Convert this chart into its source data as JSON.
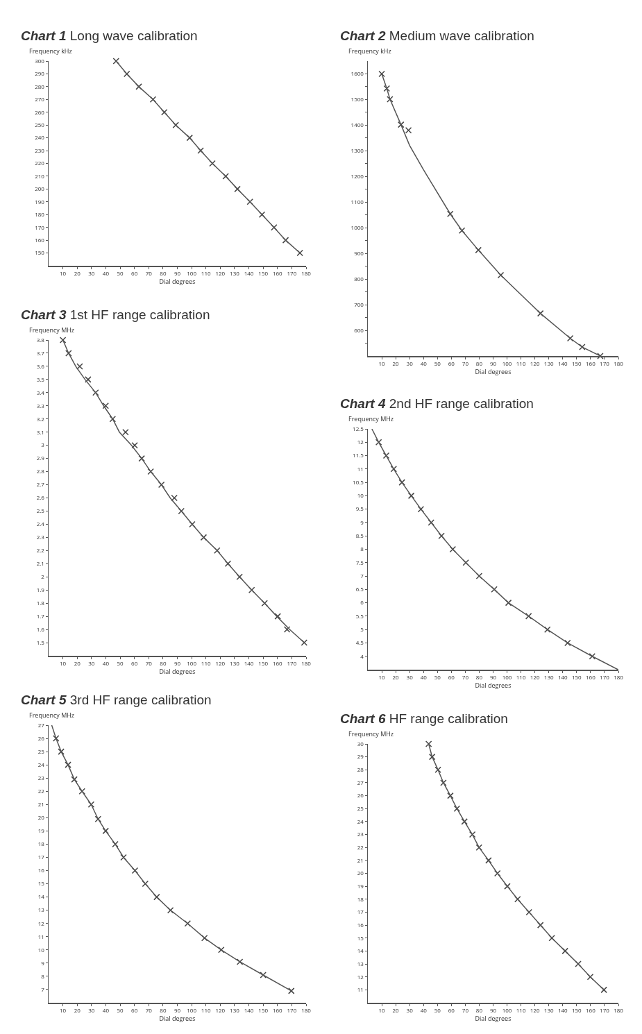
{
  "chart_data": [
    {
      "type": "line",
      "title": "Chart 1 Long wave calibration",
      "xlabel": "Dial degrees",
      "ylabel": "Frequency kHz",
      "xlim": [
        0,
        180
      ],
      "xticks": [
        10,
        20,
        30,
        40,
        50,
        60,
        70,
        80,
        90,
        100,
        110,
        120,
        130,
        140,
        150,
        160,
        170,
        180
      ],
      "ylim": [
        140,
        300
      ],
      "yticks": [
        150,
        160,
        170,
        180,
        190,
        200,
        210,
        220,
        230,
        240,
        250,
        260,
        270,
        280,
        290,
        300
      ],
      "grid": false,
      "series": [
        {
          "type": "scatter",
          "marker": "cross",
          "color": "#444444",
          "x": [
            47.2,
            54.7,
            63.1,
            73,
            80.9,
            88.9,
            98.6,
            106.3,
            114.5,
            123.8,
            132,
            140.8,
            149.2,
            157.6,
            165.7,
            175.7
          ],
          "values": [
            300,
            290,
            280,
            270,
            260,
            250,
            240,
            230,
            220,
            210,
            200,
            190,
            180,
            170,
            160,
            150
          ]
        },
        {
          "type": "line",
          "marker": "none",
          "line_style": "solid",
          "color": "#555555",
          "x": [
            47.2,
            54.7,
            63.1,
            73,
            80.9,
            88.9,
            98.6,
            106.3,
            114.5,
            123.8,
            132,
            140.8,
            149.2,
            157.6,
            165.7,
            175.7
          ],
          "values": [
            300,
            290,
            280,
            270,
            260,
            250,
            240,
            230,
            220,
            210,
            200,
            190,
            180,
            170,
            160,
            150
          ]
        }
      ]
    },
    {
      "type": "line",
      "title": "Chart 2 Medium wave calibration",
      "xlabel": "Dial degrees",
      "ylabel": "Frequency kHz",
      "xlim": [
        0,
        180
      ],
      "xticks": [
        10,
        20,
        30,
        40,
        50,
        60,
        70,
        80,
        90,
        100,
        110,
        120,
        130,
        140,
        150,
        160,
        170,
        180
      ],
      "ylim": [
        500,
        1650
      ],
      "yticks": [
        {
          "value": 550,
          "label": null
        },
        600,
        {
          "value": 650,
          "label": null
        },
        700,
        {
          "value": 750,
          "label": null
        },
        800,
        {
          "value": 850,
          "label": null
        },
        900,
        {
          "value": 950,
          "label": null
        },
        1000,
        {
          "value": 1050,
          "label": null
        },
        1100,
        {
          "value": 1150,
          "label": null
        },
        1200,
        {
          "value": 1250,
          "label": null
        },
        1300,
        {
          "value": 1350,
          "label": null
        },
        1400,
        {
          "value": 1450,
          "label": null
        },
        1500,
        {
          "value": 1550,
          "label": null
        },
        1600
      ],
      "grid": false,
      "series": [
        {
          "type": "scatter",
          "marker": "cross",
          "color": "#444444",
          "x": [
            10,
            13.6,
            15.9,
            23.8,
            29.2,
            59.2,
            67.6,
            79.4,
            95.5,
            124,
            145.4,
            154,
            167
          ],
          "values": [
            1600,
            1543,
            1501,
            1402,
            1380,
            1054,
            989,
            913,
            815,
            666,
            569,
            535,
            500
          ]
        },
        {
          "type": "line",
          "marker": "none",
          "line_style": "solid",
          "color": "#555555",
          "x": [
            10,
            13.6,
            15.9,
            23.8,
            30,
            40,
            59.2,
            67.6,
            79.4,
            95.5,
            124,
            145.4,
            154,
            167
          ],
          "values": [
            1600,
            1543,
            1501,
            1402,
            1321,
            1226,
            1054,
            989,
            913,
            815,
            666,
            569,
            535,
            500
          ]
        }
      ]
    },
    {
      "type": "line",
      "title": "Chart 3 1st HF range calibration",
      "xlabel": "Dial degrees",
      "ylabel": "Frequency MHz",
      "xlim": [
        0,
        180
      ],
      "xticks": [
        10,
        20,
        30,
        40,
        50,
        60,
        70,
        80,
        90,
        100,
        110,
        120,
        130,
        140,
        150,
        160,
        170,
        180
      ],
      "ylim": [
        1.4,
        3.8
      ],
      "yticks": [
        1.5,
        1.6,
        1.7,
        1.8,
        1.9,
        2.0,
        2.1,
        2.2,
        2.3,
        2.4,
        2.5,
        2.6,
        2.7,
        2.8,
        2.9,
        3.0,
        3.1,
        3.2,
        3.3,
        3.4,
        3.5,
        3.6,
        3.7,
        3.8
      ],
      "grid": false,
      "series": [
        {
          "type": "scatter",
          "marker": "cross",
          "color": "#444444",
          "x": [
            10,
            14,
            21.8,
            27.6,
            32.9,
            39.9,
            44.8,
            53.8,
            60.2,
            65.1,
            71.4,
            78.9,
            87.9,
            92.8,
            100.4,
            108.4,
            117.8,
            125.4,
            133.5,
            142,
            151,
            160.2,
            166.7,
            178.7
          ],
          "values": [
            3.8,
            3.7,
            3.6,
            3.5,
            3.4,
            3.3,
            3.2,
            3.1,
            3.0,
            2.9,
            2.8,
            2.7,
            2.6,
            2.5,
            2.4,
            2.3,
            2.2,
            2.1,
            2.0,
            1.9,
            1.8,
            1.7,
            1.6,
            1.5
          ]
        },
        {
          "type": "line",
          "marker": "none",
          "line_style": "solid",
          "color": "#555555",
          "x": [
            10,
            14,
            19,
            25.5,
            32.9,
            38.5,
            44.8,
            49.5,
            58,
            65.1,
            71.4,
            78.9,
            85,
            92.8,
            100.4,
            108.4,
            117.8,
            125.4,
            133.5,
            142,
            151,
            159.5,
            168.5,
            178.7
          ],
          "values": [
            3.8,
            3.7,
            3.6,
            3.5,
            3.4,
            3.3,
            3.2,
            3.1,
            3.0,
            2.9,
            2.8,
            2.7,
            2.6,
            2.5,
            2.4,
            2.3,
            2.2,
            2.1,
            2.0,
            1.9,
            1.8,
            1.7,
            1.6,
            1.5
          ]
        }
      ]
    },
    {
      "type": "line",
      "title": "Chart 4 2nd HF range calibration",
      "xlabel": "Dial degrees",
      "ylabel": "Frequency MHz",
      "xlim": [
        0,
        180
      ],
      "xticks": [
        10,
        20,
        30,
        40,
        50,
        60,
        70,
        80,
        90,
        100,
        110,
        120,
        130,
        140,
        150,
        160,
        170,
        180
      ],
      "ylim": [
        3.5,
        12.5
      ],
      "yticks": [
        4.0,
        4.5,
        5.0,
        5.5,
        6.0,
        6.5,
        7.0,
        7.5,
        8.0,
        8.5,
        9.0,
        9.5,
        10.0,
        10.5,
        11.0,
        11.5,
        12.0,
        12.5
      ],
      "grid": false,
      "series": [
        {
          "type": "scatter",
          "marker": "cross",
          "color": "#444444",
          "x": [
            7.8,
            13.2,
            18.6,
            24.5,
            31.2,
            38.1,
            45.5,
            52.9,
            61,
            70.4,
            80,
            90.8,
            101,
            115.5,
            129,
            143.5,
            161.2
          ],
          "values": [
            12.0,
            11.5,
            11.0,
            10.5,
            10.0,
            9.5,
            9.0,
            8.5,
            8.0,
            7.5,
            7.0,
            6.5,
            6.0,
            5.5,
            5.0,
            4.5,
            4.0
          ]
        },
        {
          "type": "line",
          "marker": "none",
          "line_style": "solid",
          "color": "#555555",
          "x": [
            2.9,
            7.8,
            13.2,
            18.6,
            24.5,
            31.2,
            38.1,
            45.5,
            52.9,
            61,
            70.4,
            80,
            90.8,
            101,
            115.5,
            129,
            143.5,
            161.2,
            179.8
          ],
          "values": [
            12.5,
            12.0,
            11.5,
            11.0,
            10.5,
            10.0,
            9.5,
            9.0,
            8.5,
            8.0,
            7.5,
            7.0,
            6.5,
            6.0,
            5.5,
            5.0,
            4.5,
            4.0,
            3.5
          ]
        }
      ]
    },
    {
      "type": "line",
      "title": "Chart 5 3rd HF range calibration",
      "xlabel": "Dial degrees",
      "ylabel": "Frequency MHz",
      "xlim": [
        0,
        180
      ],
      "xticks": [
        10,
        20,
        30,
        40,
        50,
        60,
        70,
        80,
        90,
        100,
        110,
        120,
        130,
        140,
        150,
        160,
        170,
        180
      ],
      "ylim": [
        6,
        27
      ],
      "yticks": [
        7,
        8,
        9,
        10,
        11,
        12,
        13,
        14,
        15,
        16,
        17,
        18,
        19,
        20,
        21,
        22,
        23,
        24,
        25,
        26,
        27
      ],
      "grid": false,
      "series": [
        {
          "type": "scatter",
          "marker": "cross",
          "color": "#444444",
          "x": [
            5.2,
            8.8,
            13.6,
            18,
            23.4,
            29.8,
            34.6,
            39.9,
            46.6,
            52.4,
            60.4,
            67.6,
            75.6,
            85.2,
            97.2,
            109,
            120.7,
            133.7,
            150,
            169.7
          ],
          "values": [
            26,
            25,
            24,
            22.9,
            22,
            21,
            19.9,
            19,
            18,
            17,
            16,
            15,
            14,
            13,
            12,
            10.9,
            10,
            9.1,
            8.1,
            6.9
          ]
        },
        {
          "type": "line",
          "marker": "none",
          "line_style": "solid",
          "color": "#555555",
          "x": [
            2.2,
            5.2,
            8.8,
            13.6,
            18,
            23.4,
            29.8,
            34.6,
            39.9,
            46.6,
            52.4,
            60.4,
            67.6,
            75.6,
            85.2,
            97.2,
            109,
            120.7,
            133.7,
            150,
            169.7
          ],
          "values": [
            27,
            26,
            25,
            24,
            22.9,
            22,
            21,
            19.9,
            19,
            18,
            17,
            16,
            15,
            14,
            13,
            12,
            10.9,
            10,
            9.1,
            8.1,
            6.9
          ]
        }
      ]
    },
    {
      "type": "line",
      "title": "Chart 6 HF range calibration",
      "xlabel": "Dial degrees",
      "ylabel": "Frequency MHz",
      "xlim": [
        0,
        180
      ],
      "xticks": [
        10,
        20,
        30,
        40,
        50,
        60,
        70,
        80,
        90,
        100,
        110,
        120,
        130,
        140,
        150,
        160,
        170,
        180
      ],
      "ylim": [
        10,
        30
      ],
      "yticks": [
        11,
        12,
        13,
        14,
        15,
        16,
        17,
        18,
        19,
        20,
        21,
        22,
        23,
        24,
        25,
        26,
        27,
        28,
        29,
        30
      ],
      "grid": false,
      "series": [
        {
          "type": "scatter",
          "marker": "cross",
          "color": "#444444",
          "x": [
            43.7,
            46.2,
            50.4,
            54.3,
            59.3,
            64,
            69.4,
            75.1,
            79.9,
            86.7,
            93.1,
            100.2,
            107.6,
            115.8,
            124,
            132.2,
            141.7,
            151.1,
            159.8,
            169.6
          ],
          "values": [
            30,
            29,
            28,
            27,
            26,
            25,
            24,
            23,
            22,
            21,
            20,
            19,
            18,
            17,
            16,
            15,
            14,
            13,
            12,
            11
          ]
        },
        {
          "type": "line",
          "marker": "none",
          "line_style": "solid",
          "color": "#555555",
          "x": [
            43.7,
            46.2,
            50.4,
            54.3,
            59.3,
            64,
            69.4,
            75.1,
            79.9,
            86.7,
            93.1,
            100.2,
            107.6,
            115.8,
            124,
            132.2,
            141.7,
            151.1,
            159.8,
            169.6
          ],
          "values": [
            30,
            29,
            28,
            27,
            26,
            25,
            24,
            23,
            22,
            21,
            20,
            19,
            18,
            17,
            16,
            15,
            14,
            13,
            12,
            11
          ]
        }
      ]
    }
  ]
}
